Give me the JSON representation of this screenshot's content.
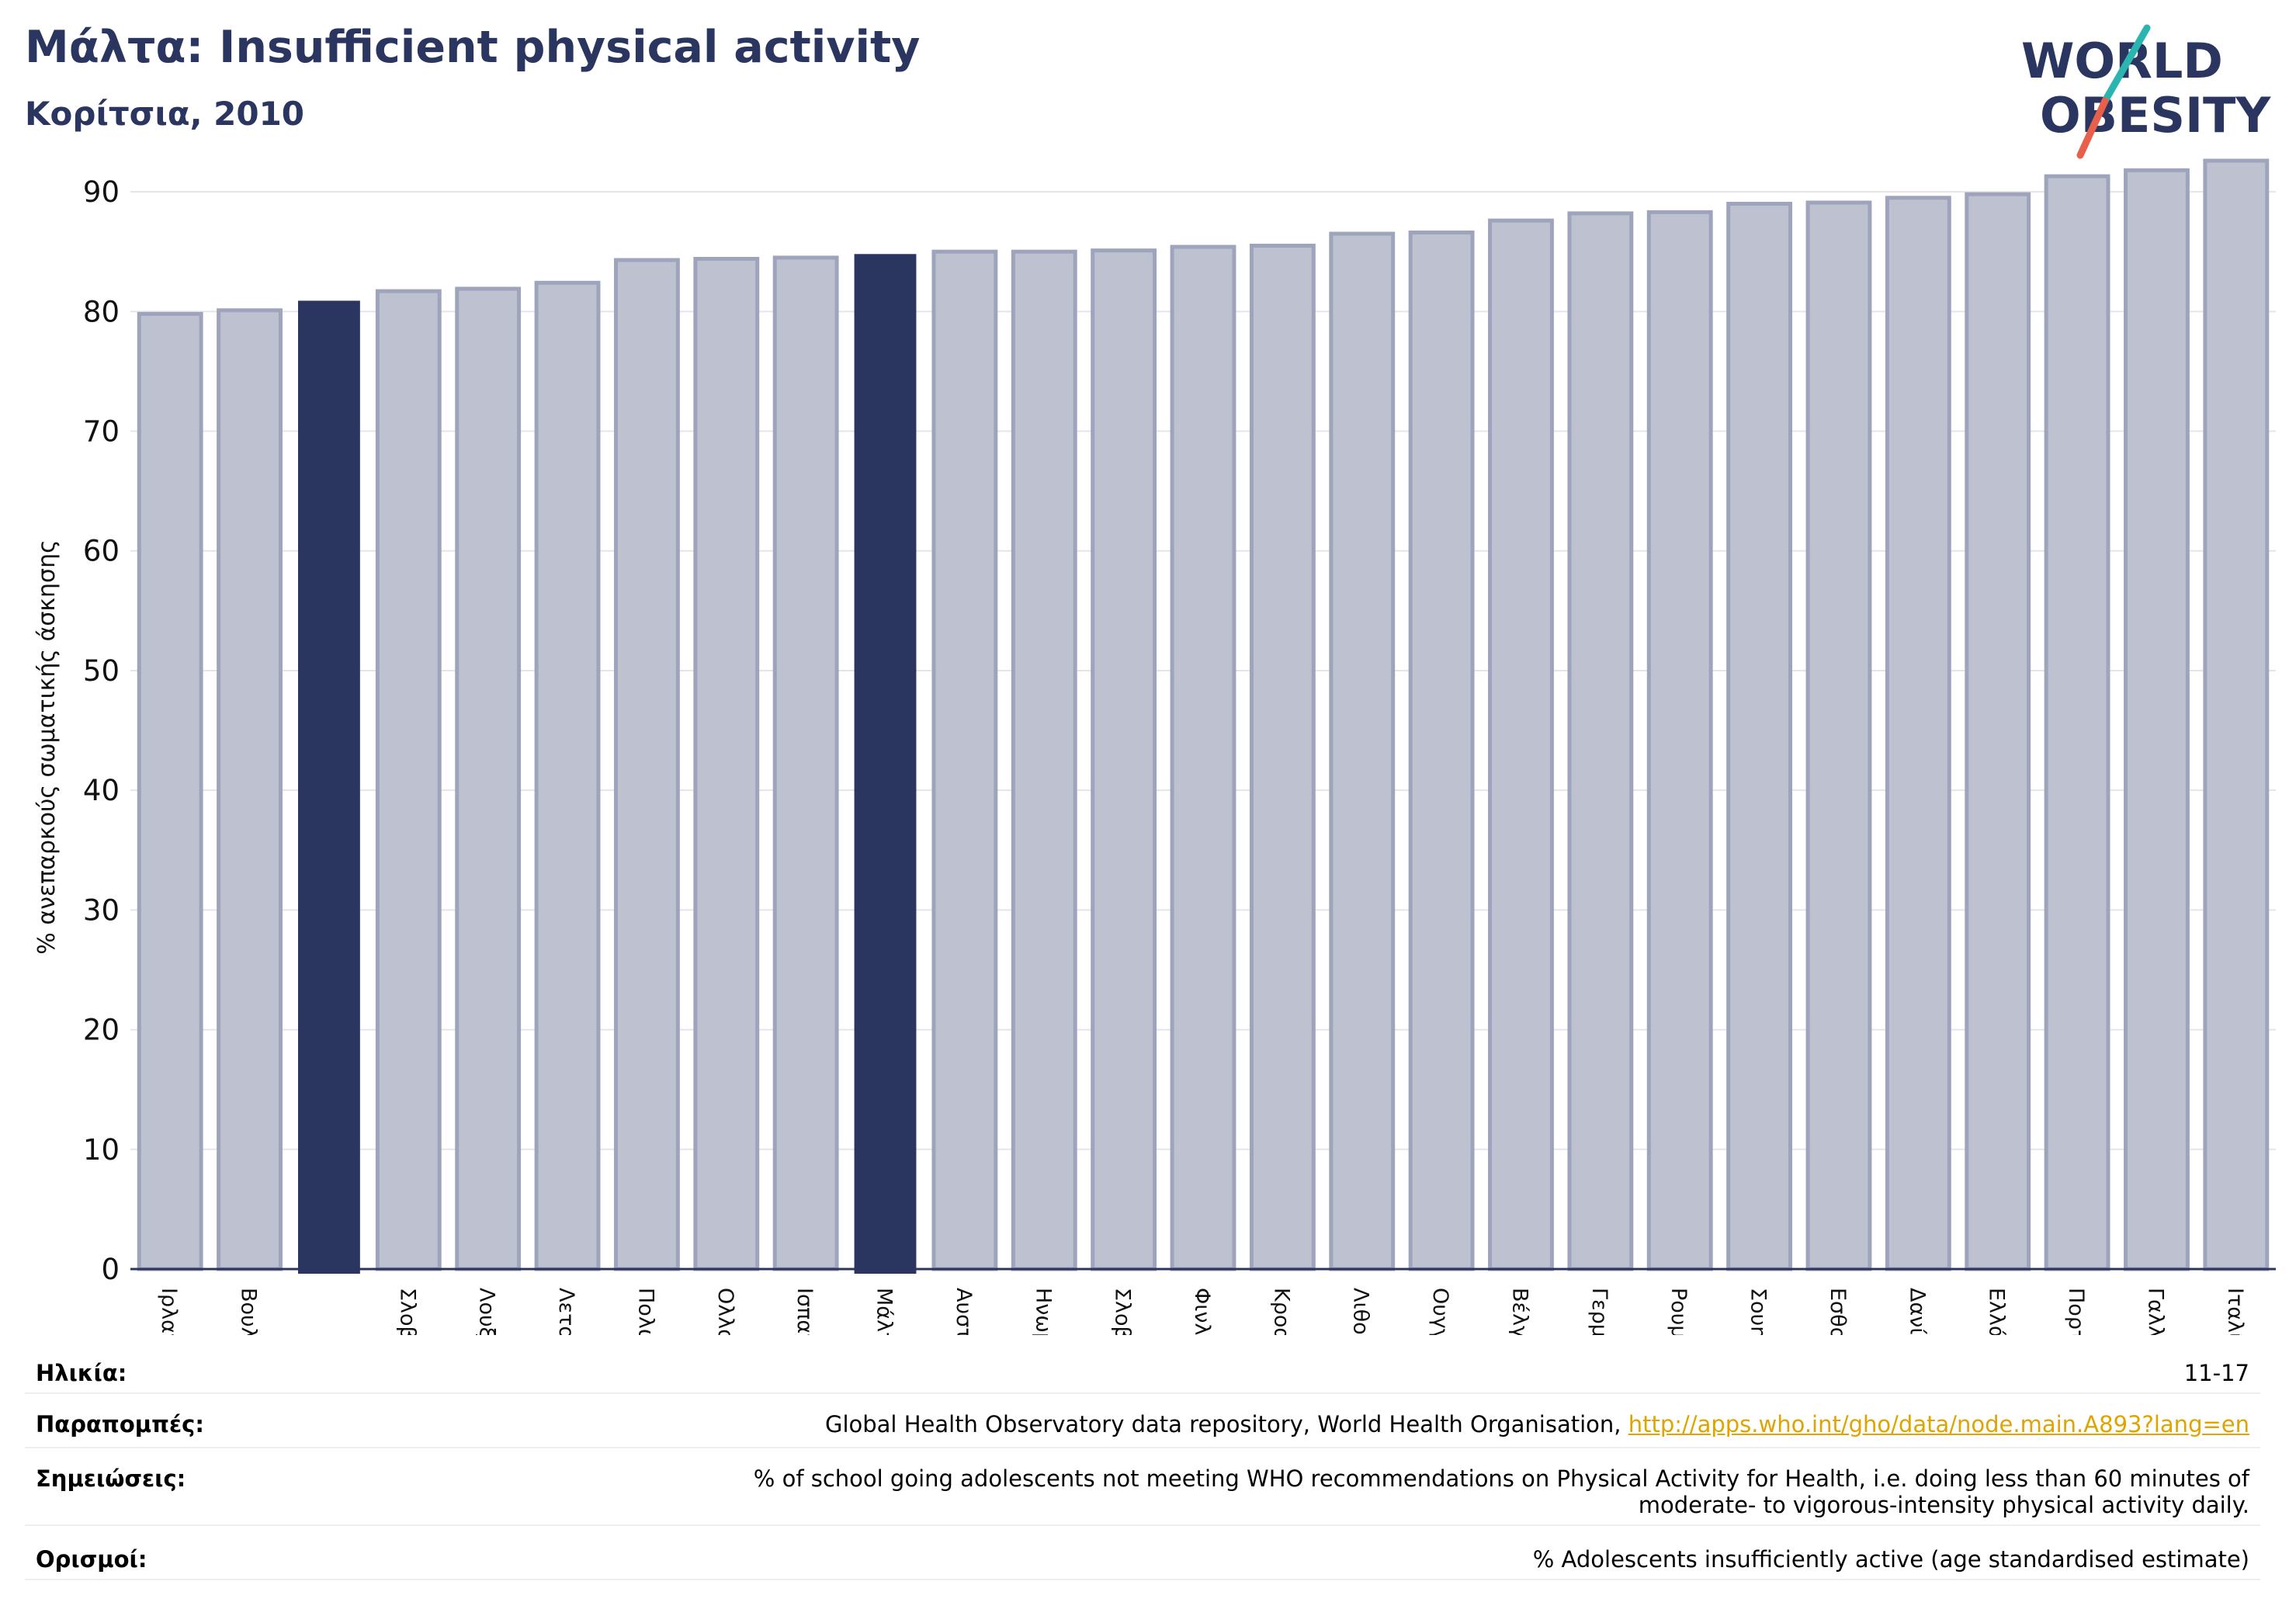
{
  "header": {
    "title": "Μάλτα: Insufficient physical activity",
    "subtitle": "Κορίτσια, 2010"
  },
  "logo": {
    "line1": "WORLD",
    "line2": "OBESITY",
    "colors": {
      "text": "#2a3560",
      "slash_top": "#2bb5b0",
      "slash_bottom": "#e8604c"
    }
  },
  "colors": {
    "bar_default": "#bec1cf",
    "bar_default_edge": "#9ea4bb",
    "bar_highlight": "#2a3560",
    "axis": "#2a3560",
    "grid": "#e3e5ec"
  },
  "chart_data": {
    "type": "bar",
    "ylabel": "% ανεπαρκούς σωματικής άσκησης",
    "ylim": [
      0,
      95
    ],
    "yticks": [
      0,
      10,
      20,
      30,
      40,
      50,
      60,
      70,
      80,
      90
    ],
    "grid": true,
    "categories": [
      "Ιρλανδία",
      "Βουλγαρία",
      "",
      "Σλοβακία",
      "Λουξεμβούργο",
      "Λετονία",
      "Πολωνία",
      "Ολλανδία",
      "Ισπανία",
      "Μάλτα",
      "Αυστρία",
      "Ηνωμένο Βασίλειο",
      "Σλοβενία",
      "Φινλανδία",
      "Κροατία",
      "Λιθουανία",
      "Ουγγαρία",
      "Βέλγιο",
      "Γερμανία",
      "Ρουμανία",
      "Σουηδία",
      "Εσθονία",
      "Δανία",
      "Ελλάδα",
      "Πορτογαλία",
      "Γαλλία",
      "Ιταλία"
    ],
    "values": [
      79.8,
      80.1,
      80.9,
      81.7,
      81.9,
      82.4,
      84.3,
      84.4,
      84.5,
      84.8,
      85.0,
      85.0,
      85.1,
      85.4,
      85.5,
      86.5,
      86.6,
      87.6,
      88.2,
      88.3,
      89.0,
      89.1,
      89.5,
      89.8,
      91.3,
      91.8,
      92.6
    ],
    "highlighted": [
      2,
      9
    ]
  },
  "notes": {
    "age_label": "Ηλικία:",
    "age_value": "11-17",
    "refs_label": "Παραπομπές:",
    "refs_text": "Global Health Observatory data repository, World Health Organisation, ",
    "refs_link": "http://apps.who.int/gho/data/node.main.A893?lang=en",
    "notes_label": "Σημειώσεις:",
    "notes_line1": "% of school going adolescents not meeting WHO recommendations on Physical Activity for Health, i.e. doing less than 60 minutes of",
    "notes_line2": "moderate- to vigorous-intensity physical activity daily.",
    "defs_label": "Ορισμοί:",
    "defs_value": "% Adolescents insufficiently active (age standardised estimate)"
  }
}
